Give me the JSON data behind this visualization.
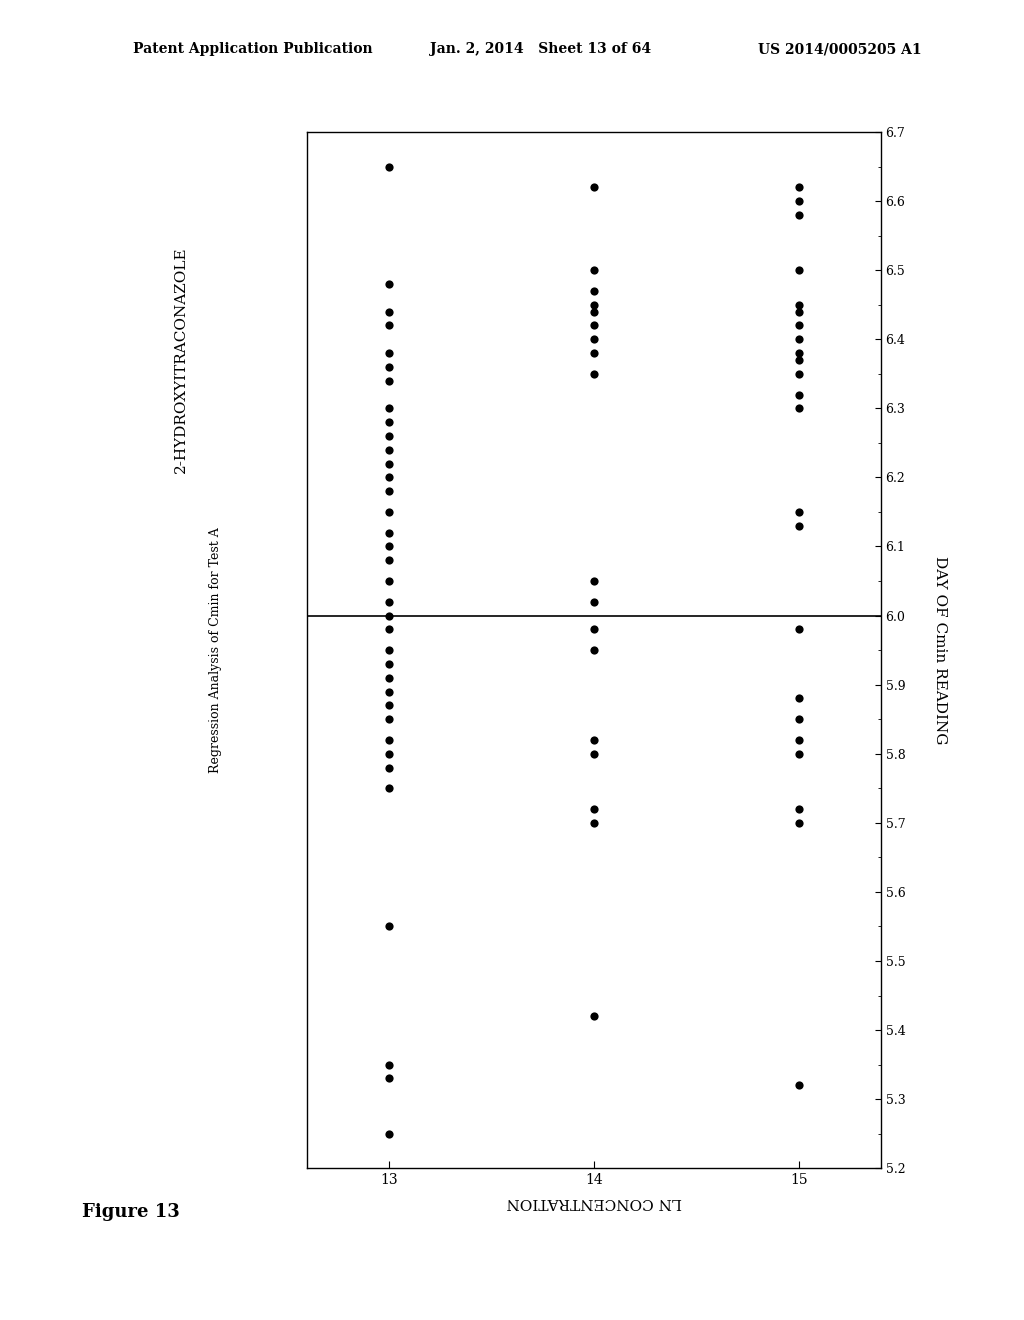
{
  "title_line1": "2-HYDROXYITRACONAZOLE",
  "title_line2": "Regression Analysis of Cmin for Test A",
  "xlabel": "LN CONCENTRATION",
  "ylabel": "DAY OF Cmin READING",
  "x_range": [
    5.2,
    6.7
  ],
  "y_range": [
    12.7,
    15.3
  ],
  "yticks": [
    13,
    14,
    15
  ],
  "xticks": [
    6.7,
    6.6,
    6.5,
    6.4,
    6.3,
    6.2,
    6.1,
    6.0,
    5.9,
    5.8,
    5.7,
    5.6,
    5.5,
    5.4,
    5.3,
    5.2
  ],
  "vline_x": 6.0,
  "figure_label": "Figure 13",
  "header_left": "Patent Application Publication",
  "header_center": "Jan. 2, 2014   Sheet 13 of 64",
  "header_right": "US 2014/0005205 A1",
  "points_day13": [
    6.65,
    6.48,
    6.44,
    6.42,
    6.38,
    6.36,
    6.34,
    6.3,
    6.28,
    6.26,
    6.24,
    6.22,
    6.2,
    6.18,
    6.15,
    6.12,
    6.1,
    6.08,
    6.05,
    6.02,
    6.0,
    5.98,
    5.95,
    5.93,
    5.91,
    5.89,
    5.87,
    5.85,
    5.82,
    5.8,
    5.78,
    5.75,
    5.55,
    5.35,
    5.33,
    5.25
  ],
  "points_day14": [
    6.62,
    6.5,
    6.47,
    6.45,
    6.44,
    6.42,
    6.4,
    6.38,
    6.35,
    6.05,
    6.02,
    5.98,
    5.95,
    5.82,
    5.8,
    5.72,
    5.7,
    5.42
  ],
  "points_day15": [
    6.62,
    6.6,
    6.58,
    6.5,
    6.45,
    6.44,
    6.42,
    6.4,
    6.38,
    6.37,
    6.35,
    6.32,
    6.3,
    6.15,
    6.13,
    5.98,
    5.88,
    5.85,
    5.82,
    5.8,
    5.72,
    5.7,
    5.32
  ],
  "background_color": "#ffffff",
  "dot_color": "#000000",
  "dot_size": 35,
  "header_fontsize": 10,
  "figure_label_fontsize": 13,
  "title1_fontsize": 11,
  "title2_fontsize": 9,
  "tick_label_fontsize": 9,
  "axis_label_fontsize": 11
}
